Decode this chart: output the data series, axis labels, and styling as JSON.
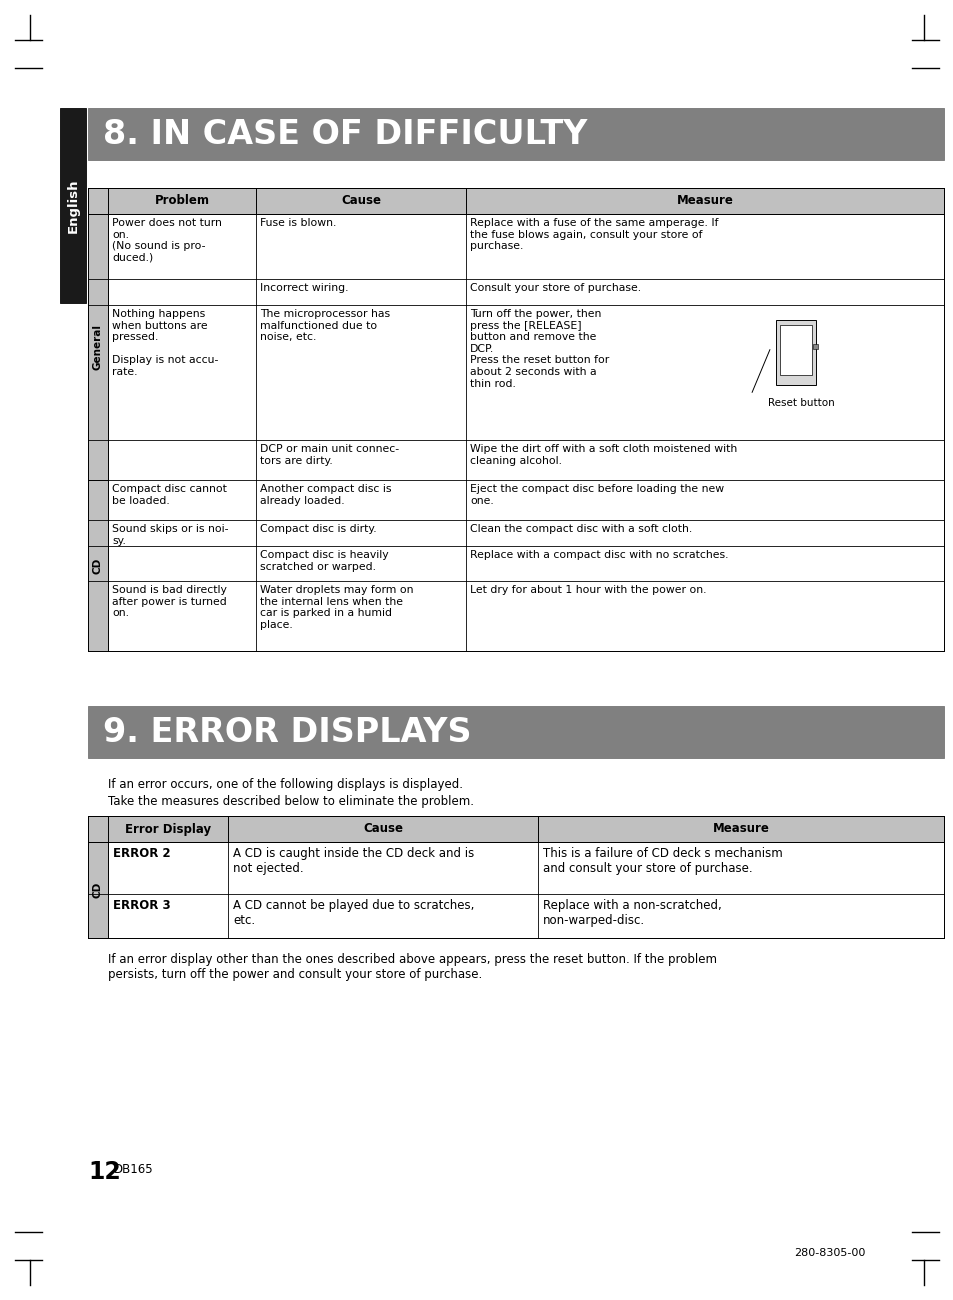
{
  "page_bg": "#ffffff",
  "header1_bg": "#808080",
  "header1_text": "8. IN CASE OF DIFFICULTY",
  "header1_text_color": "#ffffff",
  "header2_bg": "#808080",
  "header2_text": "9. ERROR DISPLAYS",
  "header2_text_color": "#ffffff",
  "table1_header_bg": "#c0c0c0",
  "table1_header_cols": [
    "Problem",
    "Cause",
    "Measure"
  ],
  "table2_header_bg": "#c0c0c0",
  "table2_header_cols": [
    "Error Display",
    "Cause",
    "Measure"
  ],
  "sidebar_bg": "#c0c0c0",
  "english_label": "English",
  "english_bg": "#1a1a1a",
  "english_text_color": "#ffffff",
  "section_label_general": "General",
  "section_label_cd": "CD",
  "error_intro_line1": "If an error occurs, one of the following displays is displayed.",
  "error_intro_line2": "Take the measures described below to eliminate the problem.",
  "error_footer": "If an error display other than the ones described above appears, press the reset button. If the problem\npersists, turn off the power and consult your store of purchase.",
  "page_number": "12",
  "model": "DB165",
  "doc_number": "280-8305-00"
}
